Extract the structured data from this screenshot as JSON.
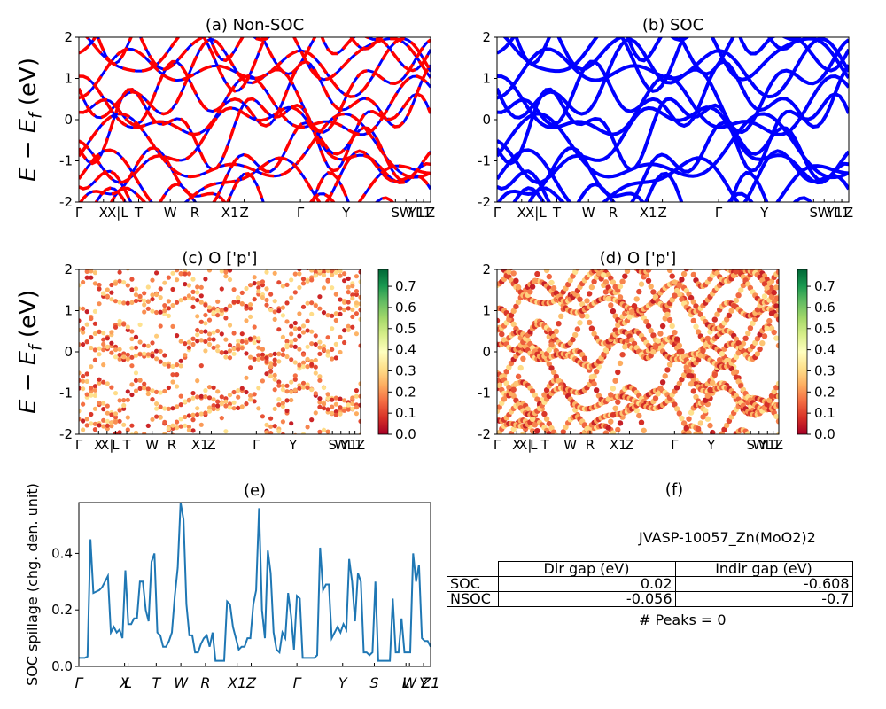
{
  "panels": [
    {
      "id": "a",
      "title": "(a) Non-SOC"
    },
    {
      "id": "b",
      "title": "(b) SOC"
    },
    {
      "id": "c",
      "title": "(c)  O ['p']"
    },
    {
      "id": "d",
      "title": "(d) O ['p']"
    },
    {
      "id": "e",
      "title": "(e)"
    },
    {
      "id": "f",
      "title": "(f)"
    }
  ],
  "band_ylabel": "E − E_f (eV)",
  "spillage_ylabel": "SOC spillage (chg. den. unit)",
  "band_kpath_labels": [
    "Γ",
    "X",
    "X|",
    "L",
    "T",
    "W",
    "R",
    "X1",
    "Z",
    "Γ",
    "Y",
    "S",
    "W",
    "Y1",
    "L1",
    "Z"
  ],
  "spill_kpath_labels": [
    "Γ",
    "X",
    "L",
    "T",
    "W",
    "R",
    "X1",
    "Z",
    "Γ",
    "Y",
    "S",
    "L",
    "W",
    "Y",
    "Z1"
  ],
  "colorbar": {
    "ticks": [
      "0.0",
      "0.1",
      "0.2",
      "0.3",
      "0.4",
      "0.5",
      "0.6",
      "0.7"
    ],
    "colormap": "RdYlGn"
  },
  "colors": {
    "non_soc_line": "#ff0000",
    "soc_line": "#0000ff",
    "spillage_line": "#1f77b4"
  },
  "material": "JVASP-10057_Zn(MoO2)2",
  "gap_table": {
    "columns": [
      "Dir gap (eV)",
      "Indir gap (eV)"
    ],
    "rows": [
      {
        "label": "SOC",
        "dir": "0.02",
        "indir": "-0.608"
      },
      {
        "label": "NSOC",
        "dir": "-0.056",
        "indir": "-0.7"
      }
    ]
  },
  "peaks_text": "# Peaks = 0",
  "chart_data": [
    {
      "type": "line",
      "title": "(a) Non-SOC",
      "ylabel": "E − E_f (eV)",
      "ylim": [
        -2,
        2
      ],
      "yticks": [
        -2,
        -1,
        0,
        1,
        2
      ],
      "series": [
        {
          "name": "",
          "style": "dashed red"
        },
        {
          "name": "",
          "style": "solid blue"
        }
      ]
    },
    {
      "type": "line",
      "title": "(b) SOC",
      "ylim": [
        -2,
        2
      ],
      "yticks": [
        -2,
        -1,
        0,
        1,
        2
      ]
    },
    {
      "type": "scatter",
      "title": "(c)  O ['p']",
      "ylabel": "E − E_f (eV)",
      "ylim": [
        -2,
        2
      ],
      "yticks": [
        -2,
        -1,
        0,
        1,
        2
      ],
      "colorbar_range": [
        0,
        0.77
      ]
    },
    {
      "type": "scatter",
      "title": "(d) O ['p']",
      "ylim": [
        -2,
        2
      ],
      "yticks": [
        -2,
        -1,
        0,
        1,
        2
      ],
      "colorbar_range": [
        0,
        0.77
      ]
    },
    {
      "type": "line",
      "title": "(e)",
      "ylabel": "SOC spillage (chg. den. unit)",
      "ylim": [
        0,
        0.58
      ],
      "yticks": [
        0.0,
        0.2,
        0.4
      ],
      "values": [
        0.03,
        0.03,
        0.03,
        0.035,
        0.45,
        0.26,
        0.265,
        0.27,
        0.28,
        0.3,
        0.32,
        0.12,
        0.14,
        0.12,
        0.13,
        0.1,
        0.34,
        0.15,
        0.15,
        0.17,
        0.17,
        0.3,
        0.3,
        0.2,
        0.16,
        0.37,
        0.4,
        0.12,
        0.11,
        0.07,
        0.07,
        0.09,
        0.12,
        0.25,
        0.35,
        0.58,
        0.52,
        0.22,
        0.11,
        0.11,
        0.05,
        0.05,
        0.08,
        0.1,
        0.11,
        0.07,
        0.12,
        0.02,
        0.02,
        0.02,
        0.02,
        0.23,
        0.22,
        0.14,
        0.1,
        0.06,
        0.07,
        0.07,
        0.1,
        0.1,
        0.22,
        0.27,
        0.56,
        0.2,
        0.1,
        0.41,
        0.33,
        0.12,
        0.06,
        0.05,
        0.12,
        0.1,
        0.26,
        0.18,
        0.06,
        0.25,
        0.24,
        0.03,
        0.03,
        0.03,
        0.03,
        0.03,
        0.04,
        0.42,
        0.27,
        0.29,
        0.29,
        0.1,
        0.12,
        0.14,
        0.12,
        0.15,
        0.13,
        0.38,
        0.3,
        0.16,
        0.33,
        0.3,
        0.05,
        0.05,
        0.04,
        0.05,
        0.3,
        0.02,
        0.02,
        0.02,
        0.02,
        0.02,
        0.24,
        0.05,
        0.05,
        0.17,
        0.05,
        0.05,
        0.05,
        0.4,
        0.3,
        0.36,
        0.1,
        0.09,
        0.09,
        0.07
      ]
    }
  ]
}
